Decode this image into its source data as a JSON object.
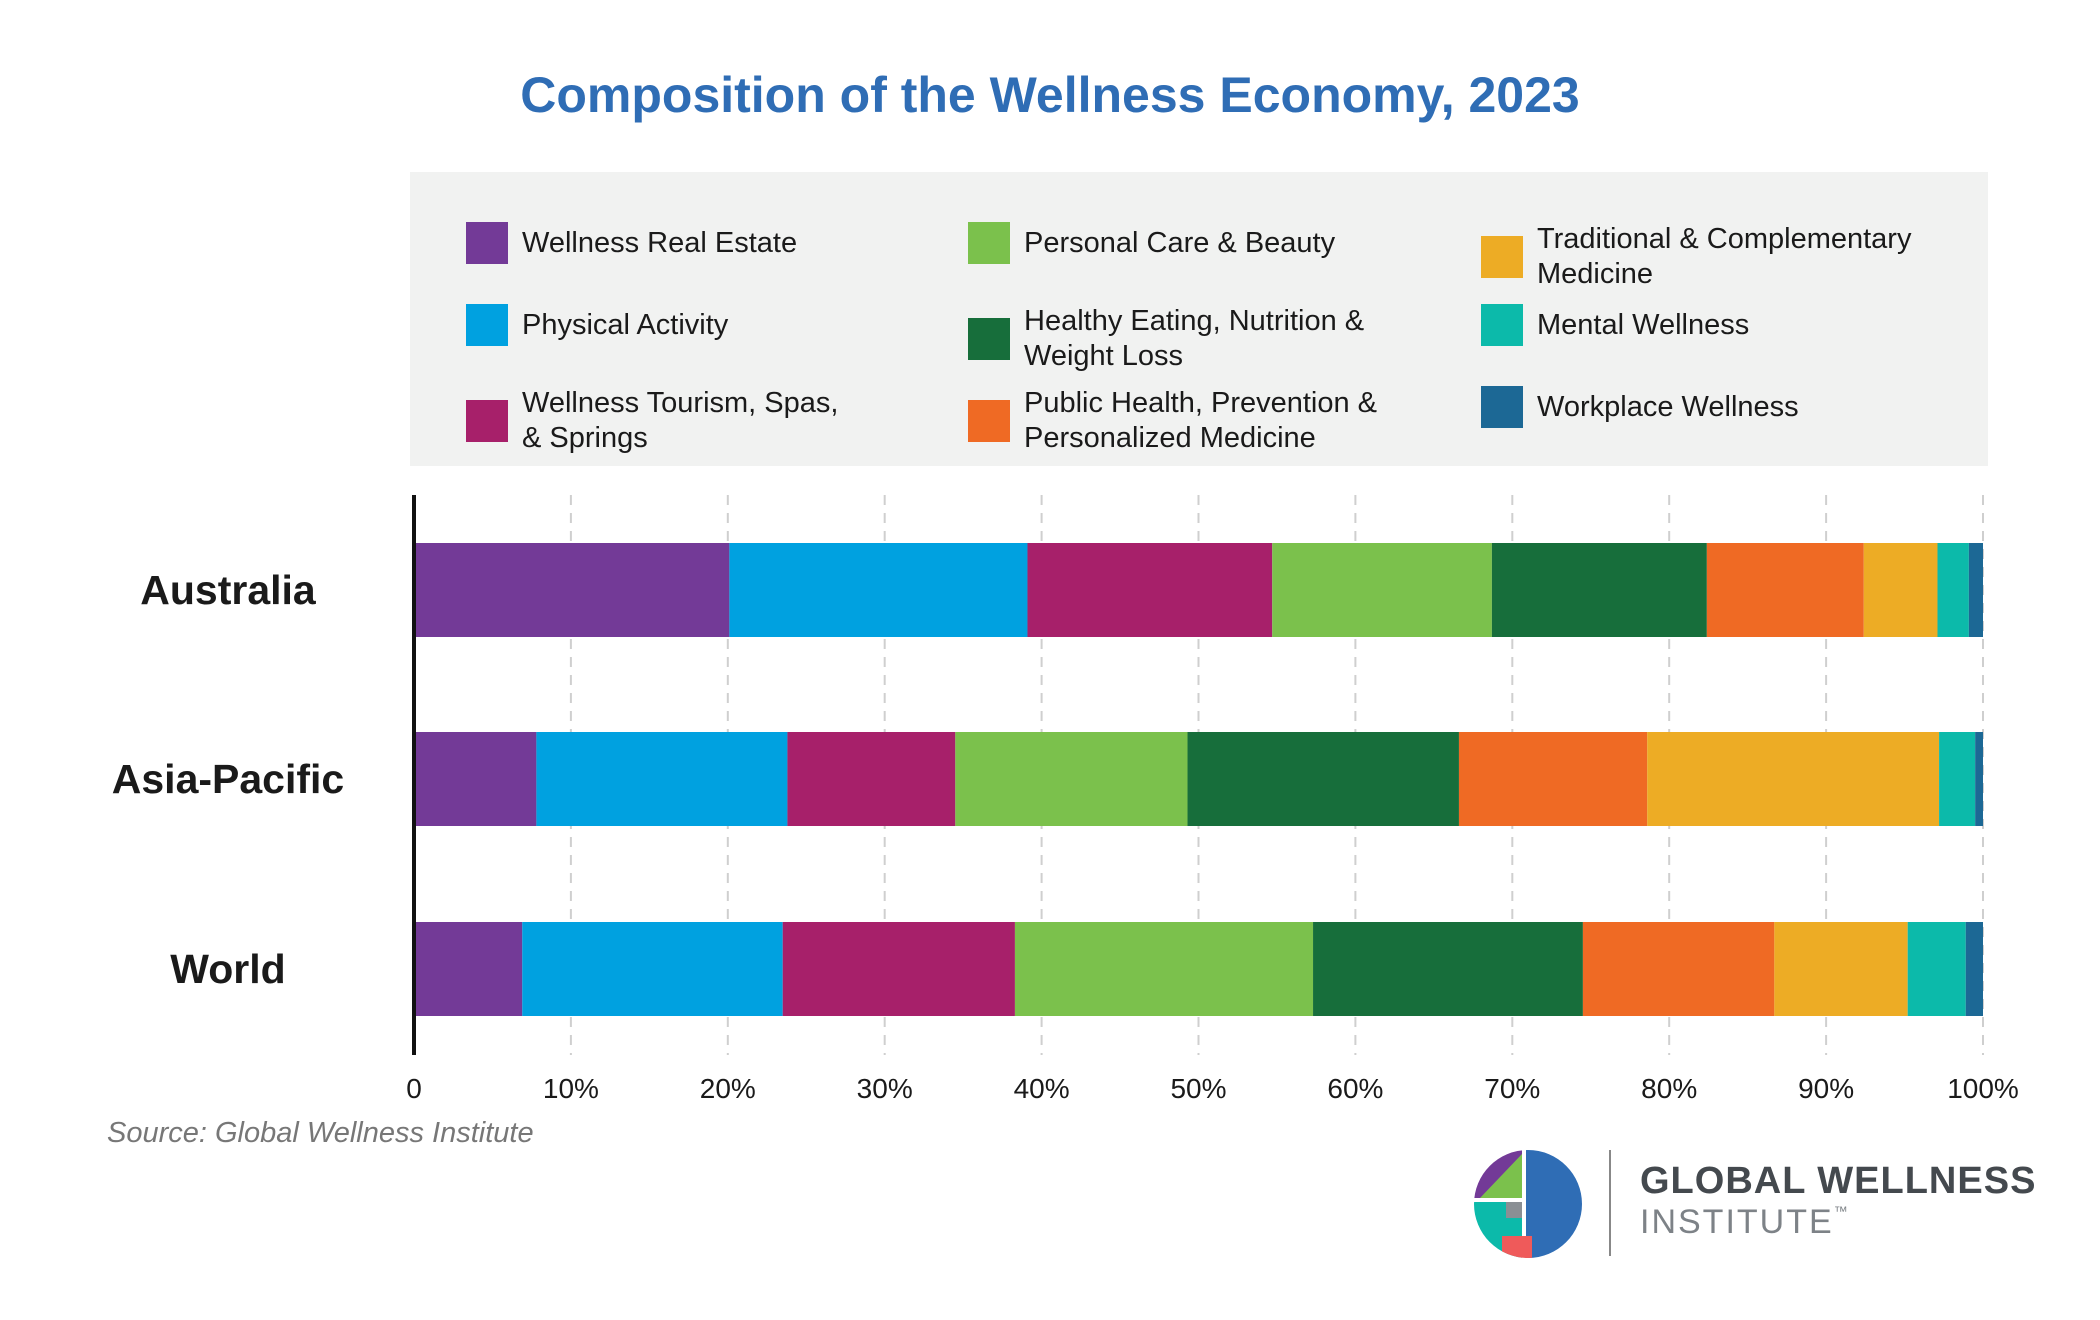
{
  "chart_data": {
    "type": "stacked-bar-horizontal-100",
    "title": "Composition of the Wellness Economy, 2023",
    "categories": [
      "Australia",
      "Asia-Pacific",
      "World"
    ],
    "series": [
      {
        "name": "Wellness Real Estate",
        "color": "#733a97",
        "values": [
          20.1,
          7.8,
          6.9
        ]
      },
      {
        "name": "Physical Activity",
        "color": "#00a1e0",
        "values": [
          19.0,
          16.0,
          16.6
        ]
      },
      {
        "name": "Wellness Tourism, Spas,\n& Springs",
        "color": "#a7206a",
        "values": [
          15.6,
          10.7,
          14.8
        ]
      },
      {
        "name": "Personal Care & Beauty",
        "color": "#7bc14c",
        "values": [
          14.0,
          14.8,
          19.0
        ]
      },
      {
        "name": "Healthy Eating, Nutrition &\nWeight Loss",
        "color": "#176e3b",
        "values": [
          13.7,
          17.3,
          17.2
        ]
      },
      {
        "name": "Public Health, Prevention &\nPersonalized Medicine",
        "color": "#ef6a24",
        "values": [
          10.0,
          12.0,
          12.2
        ]
      },
      {
        "name": "Traditional & Complementary\nMedicine",
        "color": "#edac25",
        "values": [
          4.7,
          18.6,
          8.5
        ]
      },
      {
        "name": "Mental Wellness",
        "color": "#0cbaaa",
        "values": [
          2.0,
          2.3,
          3.7
        ]
      },
      {
        "name": "Workplace Wellness",
        "color": "#1c6895",
        "values": [
          0.9,
          0.5,
          1.1
        ]
      }
    ],
    "xlim": [
      0,
      100
    ],
    "xticks": [
      "0",
      "10%",
      "20%",
      "30%",
      "40%",
      "50%",
      "60%",
      "70%",
      "80%",
      "90%",
      "100%"
    ],
    "grid": "vertical dashed",
    "legend_position": "top"
  },
  "source": "Source: Global Wellness Institute",
  "logo": {
    "line1": "GLOBAL WELLNESS",
    "line2": "INSTITUTE",
    "tm": "™"
  }
}
